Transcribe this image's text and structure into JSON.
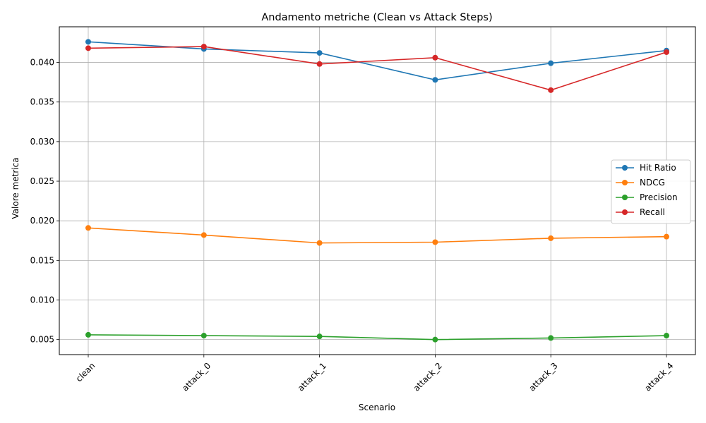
{
  "chart_data": {
    "type": "line",
    "title": "Andamento metriche (Clean vs Attack Steps)",
    "xlabel": "Scenario",
    "ylabel": "Valore metrica",
    "categories": [
      "clean",
      "attack_0",
      "attack_1",
      "attack_2",
      "attack_3",
      "attack_4"
    ],
    "ylim": [
      0.0031,
      0.0445
    ],
    "yticks": [
      0.005,
      0.01,
      0.015,
      0.02,
      0.025,
      0.03,
      0.035,
      0.04
    ],
    "ytick_labels": [
      "0.005",
      "0.010",
      "0.015",
      "0.020",
      "0.025",
      "0.030",
      "0.035",
      "0.040"
    ],
    "grid": true,
    "legend_position": "center-right",
    "series": [
      {
        "name": "Hit Ratio",
        "color": "#1f77b4",
        "values": [
          0.0426,
          0.0417,
          0.0412,
          0.0378,
          0.0399,
          0.0415
        ]
      },
      {
        "name": "NDCG",
        "color": "#ff7f0e",
        "values": [
          0.0191,
          0.0182,
          0.0172,
          0.0173,
          0.0178,
          0.018
        ]
      },
      {
        "name": "Precision",
        "color": "#2ca02c",
        "values": [
          0.0056,
          0.0055,
          0.0054,
          0.005,
          0.0052,
          0.0055
        ]
      },
      {
        "name": "Recall",
        "color": "#d62728",
        "values": [
          0.0418,
          0.042,
          0.0398,
          0.0406,
          0.0365,
          0.0413
        ]
      }
    ]
  }
}
